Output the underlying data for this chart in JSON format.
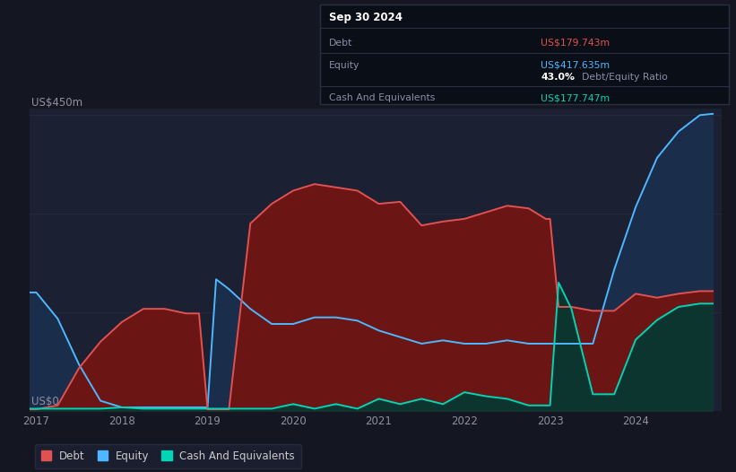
{
  "bg_color": "#141722",
  "plot_bg_color": "#1c2033",
  "grid_color": "#252a3d",
  "tooltip": {
    "date": "Sep 30 2024",
    "debt_label": "Debt",
    "debt_value": "US$179.743m",
    "debt_color": "#e05252",
    "equity_label": "Equity",
    "equity_value": "US$417.635m",
    "equity_color": "#4db8ff",
    "ratio_value": "43.0%",
    "ratio_label": "Debt/Equity Ratio",
    "ratio_color": "#cccccc",
    "cash_label": "Cash And Equivalents",
    "cash_value": "US$177.747m",
    "cash_color": "#00d4b4"
  },
  "ylabel_top": "US$450m",
  "ylabel_bottom": "US$0",
  "years": [
    2016.92,
    2017.0,
    2017.25,
    2017.5,
    2017.75,
    2018.0,
    2018.25,
    2018.5,
    2018.75,
    2018.9,
    2019.0,
    2019.1,
    2019.25,
    2019.5,
    2019.75,
    2020.0,
    2020.25,
    2020.5,
    2020.75,
    2021.0,
    2021.25,
    2021.5,
    2021.75,
    2022.0,
    2022.25,
    2022.5,
    2022.75,
    2022.95,
    2023.0,
    2023.1,
    2023.25,
    2023.5,
    2023.75,
    2024.0,
    2024.25,
    2024.5,
    2024.75,
    2024.9
  ],
  "debt": [
    2,
    2,
    8,
    65,
    105,
    135,
    155,
    155,
    148,
    148,
    2,
    2,
    2,
    285,
    315,
    335,
    345,
    340,
    335,
    315,
    318,
    282,
    288,
    292,
    302,
    312,
    308,
    292,
    292,
    158,
    158,
    152,
    152,
    178,
    172,
    178,
    182,
    182
  ],
  "equity": [
    180,
    180,
    140,
    70,
    15,
    5,
    5,
    5,
    5,
    5,
    5,
    200,
    185,
    155,
    132,
    132,
    142,
    142,
    137,
    122,
    112,
    102,
    107,
    102,
    102,
    107,
    102,
    102,
    102,
    102,
    102,
    102,
    215,
    310,
    385,
    425,
    450,
    452
  ],
  "cash": [
    3,
    3,
    3,
    3,
    3,
    5,
    3,
    3,
    3,
    3,
    3,
    3,
    3,
    3,
    3,
    10,
    3,
    10,
    3,
    18,
    10,
    18,
    10,
    28,
    22,
    18,
    8,
    8,
    8,
    195,
    155,
    25,
    25,
    108,
    138,
    158,
    163,
    163
  ],
  "debt_line_color": "#e05252",
  "equity_line_color": "#4db8ff",
  "cash_line_color": "#00d4b4",
  "debt_fill_color": "#6b1515",
  "equity_fill_color": "#1a2d4a",
  "cash_fill_color": "#0d3530",
  "xlim": [
    2016.92,
    2025.0
  ],
  "ylim": [
    0,
    460
  ],
  "xticks": [
    2017,
    2018,
    2019,
    2020,
    2021,
    2022,
    2023,
    2024
  ],
  "legend_entries": [
    "Debt",
    "Equity",
    "Cash And Equivalents"
  ]
}
